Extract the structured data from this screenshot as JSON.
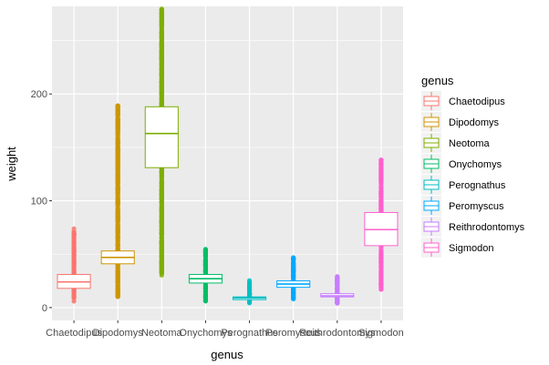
{
  "chart_data": {
    "type": "box",
    "xlabel": "genus",
    "ylabel": "weight",
    "ylim": [
      -12,
      282
    ],
    "y_ticks": [
      0,
      100,
      200
    ],
    "grid": true,
    "legend": {
      "title": "genus",
      "placement": "right"
    },
    "categories": [
      "Chaetodipus",
      "Dipodomys",
      "Neotoma",
      "Onychomys",
      "Perognathus",
      "Peromyscus",
      "Reithrodontomys",
      "Sigmodon"
    ],
    "series": [
      {
        "name": "Chaetodipus",
        "color": "#F8766D",
        "q1": 18,
        "median": 24,
        "q3": 31,
        "whisker_low": 5,
        "whisker_high": 48,
        "outlier_range": [
          48,
          56
        ],
        "points_range": [
          6,
          74
        ]
      },
      {
        "name": "Dipodomys",
        "color": "#CD9600",
        "q1": 41,
        "median": 47,
        "q3": 53,
        "whisker_low": 12,
        "whisker_high": 70,
        "outlier_range": [
          70,
          190
        ],
        "points_range": [
          10,
          190
        ]
      },
      {
        "name": "Neotoma",
        "color": "#7CAE00",
        "q1": 131,
        "median": 163,
        "q3": 188,
        "whisker_low": 60,
        "whisker_high": 240,
        "outlier_range": [
          30,
          280
        ],
        "points_range": [
          30,
          280
        ]
      },
      {
        "name": "Onychomys",
        "color": "#00BE67",
        "q1": 23,
        "median": 27,
        "q3": 31,
        "whisker_low": 14,
        "whisker_high": 42,
        "outlier_range": [
          6,
          56
        ],
        "points_range": [
          6,
          56
        ]
      },
      {
        "name": "Perognathus",
        "color": "#00BFC4",
        "q1": 8,
        "median": 9,
        "q3": 10,
        "whisker_low": 6,
        "whisker_high": 13,
        "outlier_range": [
          4,
          26
        ],
        "points_range": [
          4,
          26
        ]
      },
      {
        "name": "Peromyscus",
        "color": "#00A9FF",
        "q1": 19,
        "median": 22,
        "q3": 25,
        "whisker_low": 12,
        "whisker_high": 33,
        "outlier_range": [
          8,
          48
        ],
        "points_range": [
          8,
          48
        ]
      },
      {
        "name": "Reithrodontomys",
        "color": "#C77CFF",
        "q1": 10,
        "median": 11,
        "q3": 13,
        "whisker_low": 6,
        "whisker_high": 17,
        "outlier_range": [
          4,
          30
        ],
        "points_range": [
          4,
          30
        ]
      },
      {
        "name": "Sigmodon",
        "color": "#FF61CC",
        "q1": 58,
        "median": 73,
        "q3": 89,
        "whisker_low": 25,
        "whisker_high": 125,
        "outlier_range": [
          17,
          140
        ],
        "points_range": [
          17,
          140
        ]
      }
    ]
  }
}
